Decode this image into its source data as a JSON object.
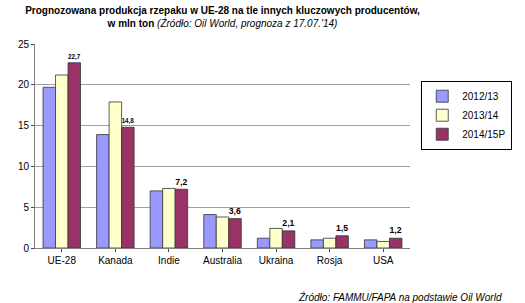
{
  "chart_data": {
    "type": "bar",
    "title": "Prognozowana produkcja rzepaku w UE-28 na tle innych kluczowych producentów,\nw mln ton",
    "subtitle": "(Źródło: Oil World, prognoza z 17.07.'14)",
    "annotations": [
      "Źródło: FAMMU/FAPA na podstawie Oil World"
    ],
    "categories": [
      "UE-28",
      "Kanada",
      "Indie",
      "Australia",
      "Ukraina",
      "Rosja",
      "USA"
    ],
    "series": [
      {
        "name": "2012/13",
        "color": "#9999ff",
        "values": [
          19.7,
          13.9,
          7.0,
          4.1,
          1.2,
          1.0,
          1.0
        ]
      },
      {
        "name": "2013/14",
        "color": "#ffffcc",
        "values": [
          21.2,
          17.9,
          7.3,
          3.8,
          2.4,
          1.2,
          0.8
        ]
      },
      {
        "name": "2014/15P",
        "color": "#993366",
        "values": [
          22.7,
          14.8,
          7.2,
          3.6,
          2.1,
          1.5,
          1.2
        ],
        "data_labels": true,
        "value_labels": [
          "22,7",
          "14,8",
          "7,2",
          "3,6",
          "2,1",
          "1,5",
          "1,2"
        ]
      }
    ],
    "ylim": [
      0,
      25
    ],
    "yticks": [
      0,
      5,
      10,
      15,
      20,
      25
    ],
    "grid": true,
    "legend": "right"
  }
}
